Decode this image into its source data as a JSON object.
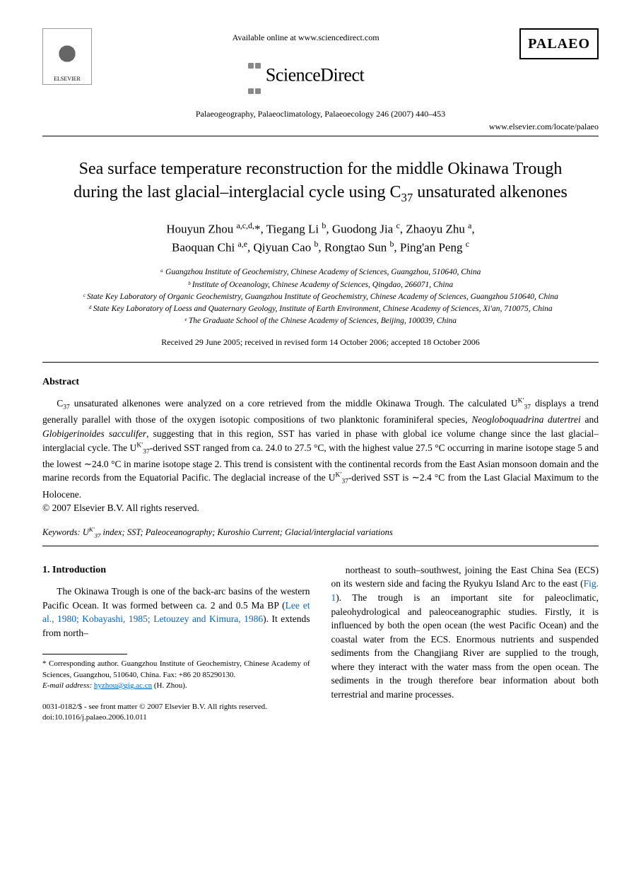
{
  "header": {
    "elsevier_label": "ELSEVIER",
    "available_online": "Available online at www.sciencedirect.com",
    "sciencedirect": "ScienceDirect",
    "palaeo": "PALAEO",
    "journal_citation": "Palaeogeography, Palaeoclimatology, Palaeoecology 246 (2007) 440–453",
    "journal_url": "www.elsevier.com/locate/palaeo"
  },
  "title_parts": {
    "pre": "Sea surface temperature reconstruction for the middle Okinawa Trough during the last glacial–interglacial cycle using C",
    "sub": "37",
    "post": " unsaturated alkenones"
  },
  "authors_html": "Houyun Zhou <sup>a,c,d,</sup>*, Tiegang Li <sup>b</sup>, Guodong Jia <sup>c</sup>, Zhaoyu Zhu <sup>a</sup>, Baoquan Chi <sup>a,e</sup>, Qiyuan Cao <sup>b</sup>, Rongtao Sun <sup>b</sup>, Ping'an Peng <sup>c</sup>",
  "affiliations": [
    "ᵃ Guangzhou Institute of Geochemistry, Chinese Academy of Sciences, Guangzhou, 510640, China",
    "ᵇ Institute of Oceanology, Chinese Academy of Sciences, Qingdao, 266071, China",
    "ᶜ State Key Laboratory of Organic Geochemistry, Guangzhou Institute of Geochemistry, Chinese Academy of Sciences, Guangzhou 510640, China",
    "ᵈ State Key Laboratory of Loess and Quaternary Geology, Institute of Earth Environment, Chinese Academy of Sciences, Xi'an, 710075, China",
    "ᵉ The Graduate School of the Chinese Academy of Sciences, Beijing, 100039, China"
  ],
  "dates": "Received 29 June 2005; received in revised form 14 October 2006; accepted 18 October 2006",
  "abstract": {
    "heading": "Abstract",
    "body_pre": "C",
    "body_sub1": "37",
    "body_mid1": " unsaturated alkenones were analyzed on a core retrieved from the middle Okinawa Trough. The calculated U",
    "body_sup1": "K′",
    "body_sub2": "37",
    "body_mid2": " displays a trend generally parallel with those of the oxygen isotopic compositions of two planktonic foraminiferal species, ",
    "species1": "Neogloboquadrina dutertrei",
    "body_mid3": " and ",
    "species2": "Globigerinoides sacculifer",
    "body_mid4": ", suggesting that in this region, SST has varied in phase with global ice volume change since the last glacial–interglacial cycle. The U",
    "body_sup2": "K′",
    "body_sub3": "37",
    "body_mid5": "-derived SST ranged from ca. 24.0 to 27.5 °C, with the highest value 27.5 °C occurring in marine isotope stage 5 and the lowest ∼24.0 °C in marine isotope stage 2. This trend is consistent with the continental records from the East Asian monsoon domain and the marine records from the Equatorial Pacific. The deglacial increase of the U",
    "body_sup3": "K′",
    "body_sub4": "37",
    "body_mid6": "-derived SST is ∼2.4 °C from the Last Glacial Maximum to the Holocene.",
    "copyright": "© 2007 Elsevier B.V. All rights reserved."
  },
  "keywords": {
    "label": "Keywords:",
    "text_pre": " U",
    "text_sup": "K′",
    "text_sub": "37",
    "text_post": " index; SST; Paleoceanography; Kuroshio Current; Glacial/interglacial variations"
  },
  "intro": {
    "heading": "1. Introduction",
    "col1_pre": "The Okinawa Trough is one of the back-arc basins of the western Pacific Ocean. It was formed between ca. 2 and 0.5 Ma BP (",
    "col1_cite": "Lee et al., 1980; Kobayashi, 1985; Letouzey and Kimura, 1986",
    "col1_post": "). It extends from north–",
    "col2_pre": "northeast to south–southwest, joining the East China Sea (ECS) on its western side and facing the Ryukyu Island Arc to the east (",
    "col2_cite": "Fig. 1",
    "col2_post": "). The trough is an important site for paleoclimatic, paleohydrological and paleoceanographic studies. Firstly, it is influenced by both the open ocean (the west Pacific Ocean) and the coastal water from the ECS. Enormous nutrients and suspended sediments from the Changjiang River are supplied to the trough, where they interact with the water mass from the open ocean. The sediments in the trough therefore bear information about both terrestrial and marine processes."
  },
  "footnote": {
    "corresponding": "* Corresponding author. Guangzhou Institute of Geochemistry, Chinese Academy of Sciences, Guangzhou, 510640, China. Fax: +86 20 85290130.",
    "email_label": "E-mail address:",
    "email": "hyzhou@gig.ac.cn",
    "email_who": " (H. Zhou)."
  },
  "bottom": {
    "line1": "0031-0182/$ - see front matter © 2007 Elsevier B.V. All rights reserved.",
    "line2": "doi:10.1016/j.palaeo.2006.10.011"
  },
  "colors": {
    "link": "#0066cc",
    "text": "#000000",
    "bg": "#ffffff"
  }
}
